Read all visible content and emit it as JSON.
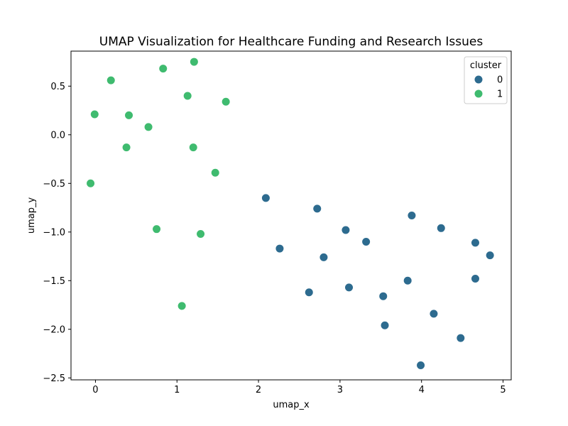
{
  "chart_data": {
    "type": "scatter",
    "title": "UMAP Visualization for Healthcare Funding and Research Issues",
    "xlabel": "umap_x",
    "ylabel": "umap_y",
    "xlim": [
      -0.3,
      5.1
    ],
    "ylim": [
      -2.52,
      0.86
    ],
    "x_ticks": [
      {
        "value": 0,
        "label": "0"
      },
      {
        "value": 1,
        "label": "1"
      },
      {
        "value": 2,
        "label": "2"
      },
      {
        "value": 3,
        "label": "3"
      },
      {
        "value": 4,
        "label": "4"
      },
      {
        "value": 5,
        "label": "5"
      }
    ],
    "y_ticks": [
      {
        "value": 0.5,
        "label": "0.5"
      },
      {
        "value": 0.0,
        "label": "0.0"
      },
      {
        "value": -0.5,
        "label": "−0.5"
      },
      {
        "value": -1.0,
        "label": "−1.0"
      },
      {
        "value": -1.5,
        "label": "−1.5"
      },
      {
        "value": -2.0,
        "label": "−2.0"
      },
      {
        "value": -2.5,
        "label": "−2.5"
      }
    ],
    "grid": false,
    "legend": {
      "title": "cluster",
      "placement": "top-right"
    },
    "series": [
      {
        "name": "0",
        "color": "#2d6b8f",
        "points": [
          {
            "x": 2.09,
            "y": -0.65
          },
          {
            "x": 2.26,
            "y": -1.17
          },
          {
            "x": 2.62,
            "y": -1.62
          },
          {
            "x": 2.72,
            "y": -0.76
          },
          {
            "x": 2.8,
            "y": -1.26
          },
          {
            "x": 3.07,
            "y": -0.98
          },
          {
            "x": 3.11,
            "y": -1.57
          },
          {
            "x": 3.32,
            "y": -1.1
          },
          {
            "x": 3.53,
            "y": -1.66
          },
          {
            "x": 3.55,
            "y": -1.96
          },
          {
            "x": 3.83,
            "y": -1.5
          },
          {
            "x": 3.88,
            "y": -0.83
          },
          {
            "x": 3.99,
            "y": -2.37
          },
          {
            "x": 4.15,
            "y": -1.84
          },
          {
            "x": 4.24,
            "y": -0.96
          },
          {
            "x": 4.48,
            "y": -2.09
          },
          {
            "x": 4.66,
            "y": -1.11
          },
          {
            "x": 4.66,
            "y": -1.48
          },
          {
            "x": 4.84,
            "y": -1.24
          }
        ]
      },
      {
        "name": "1",
        "color": "#3fbb6f",
        "points": [
          {
            "x": -0.06,
            "y": -0.5
          },
          {
            "x": -0.01,
            "y": 0.21
          },
          {
            "x": 0.19,
            "y": 0.56
          },
          {
            "x": 0.38,
            "y": -0.13
          },
          {
            "x": 0.41,
            "y": 0.2
          },
          {
            "x": 0.65,
            "y": 0.08
          },
          {
            "x": 0.75,
            "y": -0.97
          },
          {
            "x": 0.83,
            "y": 0.68
          },
          {
            "x": 1.06,
            "y": -1.76
          },
          {
            "x": 1.13,
            "y": 0.4
          },
          {
            "x": 1.2,
            "y": -0.13
          },
          {
            "x": 1.21,
            "y": 0.75
          },
          {
            "x": 1.29,
            "y": -1.02
          },
          {
            "x": 1.47,
            "y": -0.39
          },
          {
            "x": 1.6,
            "y": 0.34
          }
        ]
      }
    ]
  }
}
